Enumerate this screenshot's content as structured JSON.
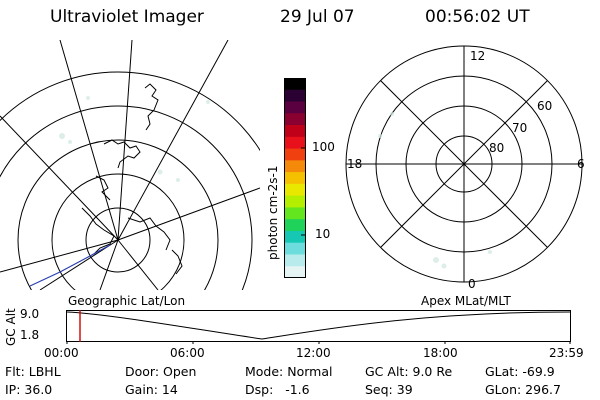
{
  "header": {
    "title": "Ultraviolet Imager",
    "date": "29 Jul 07",
    "time": "00:56:02 UT"
  },
  "colorbar": {
    "unit_label": "photon cm-2s-1",
    "ticks": [
      "100",
      "10"
    ],
    "colors": [
      "#000000",
      "#2b0033",
      "#5a0040",
      "#8a0030",
      "#c00018",
      "#e8101a",
      "#f04010",
      "#f58a0a",
      "#f5c000",
      "#e8e800",
      "#b4ee00",
      "#64e61e",
      "#1ed25a",
      "#16c8b4",
      "#6cdcdc",
      "#b8ecec",
      "#e6f4f4"
    ]
  },
  "polar_plot": {
    "clock_labels": [
      "12",
      "18",
      "6",
      "0"
    ],
    "lat_labels": [
      "60",
      "70",
      "80"
    ]
  },
  "timeline": {
    "ylabel": "GC Alt",
    "yticks": [
      "9.0",
      "1.8"
    ],
    "left_caption": "Geographic Lat/Lon",
    "right_caption": "Apex MLat/MLT",
    "xticks": [
      "00:00",
      "06:00",
      "12:00",
      "18:00",
      "23:59"
    ],
    "marker_color": "#cc0000"
  },
  "info": {
    "row1": [
      "Flt: LBHL",
      "Door: Open",
      "Mode: Normal",
      "GC Alt: 9.0 Re",
      "GLat: -69.9"
    ],
    "row2": [
      "IP: 36.0",
      "Gain: 14",
      "Dsp:   -1.6",
      "Seq: 39",
      "GLon: 296.7"
    ]
  }
}
